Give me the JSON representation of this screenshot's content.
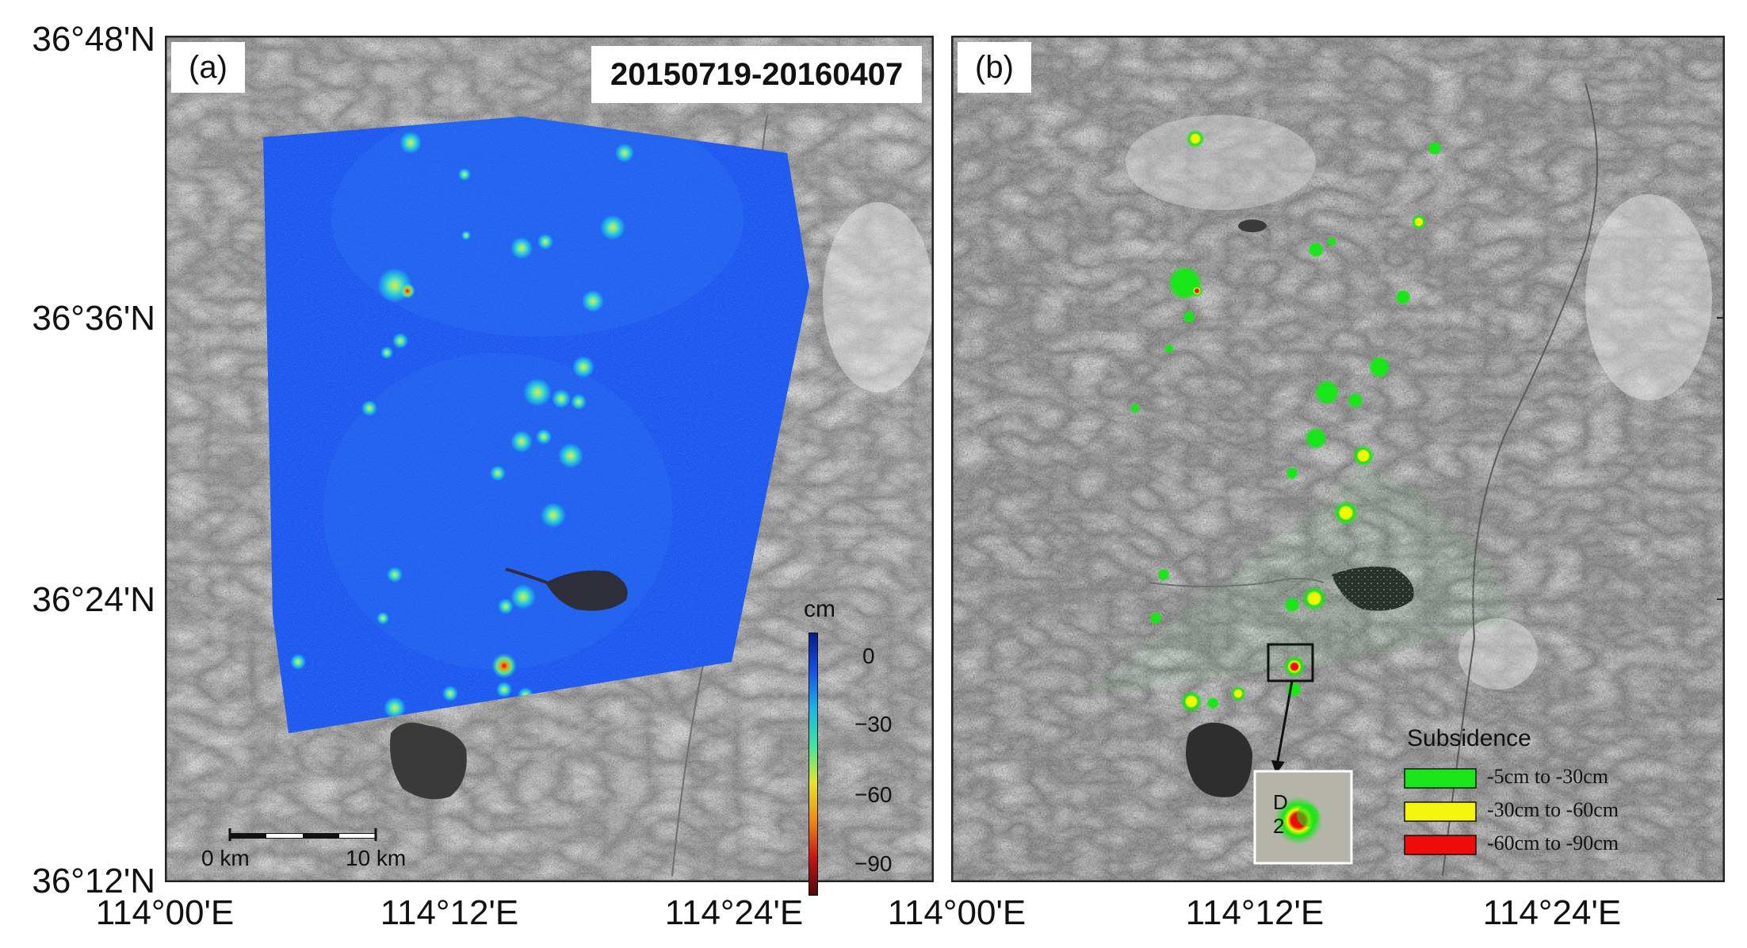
{
  "panel_a": {
    "tag": "(a)",
    "date_range": "20150719-20160407",
    "colorbar": {
      "unit": "cm",
      "ticks": [
        "0",
        "−30",
        "−60",
        "−90"
      ],
      "tick_values": [
        0,
        -30,
        -60,
        -90
      ],
      "colors": [
        "#0a1a8a",
        "#1450e8",
        "#18b4e8",
        "#3ce6a0",
        "#e6e628",
        "#f08a14",
        "#c81414",
        "#500a0a"
      ]
    },
    "scale_bar": {
      "start_label": "0 km",
      "end_label": "10 km"
    }
  },
  "panel_b": {
    "tag": "(b)",
    "legend": {
      "title": "Subsidence",
      "items": [
        {
          "label": "-5cm to -30cm",
          "color": "#18e618"
        },
        {
          "label": "-30cm to -60cm",
          "color": "#f5f50a"
        },
        {
          "label": "-60cm to -90cm",
          "color": "#f00a0a"
        }
      ]
    },
    "inset_label_line1": "D",
    "inset_label_line2": "2"
  },
  "lat_labels": [
    "36°48'N",
    "36°36'N",
    "36°24'N",
    "36°12'N"
  ],
  "lon_labels": [
    "114°00'E",
    "114°12'E",
    "114°24'E"
  ],
  "colors": {
    "deformation_blue": "#1e5af0",
    "subsidence_green": "#18e618",
    "subsidence_yellow": "#f5f50a",
    "subsidence_red": "#f00a0a",
    "frame": "#222222"
  }
}
